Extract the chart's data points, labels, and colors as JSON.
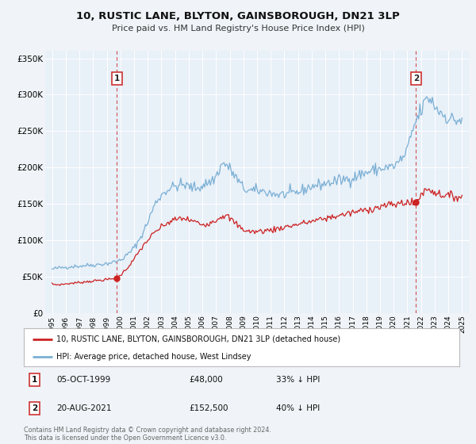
{
  "title": "10, RUSTIC LANE, BLYTON, GAINSBOROUGH, DN21 3LP",
  "subtitle": "Price paid vs. HM Land Registry's House Price Index (HPI)",
  "background_color": "#f0f4f8",
  "plot_bg_color": "#e8f0f8",
  "legend_label_red": "10, RUSTIC LANE, BLYTON, GAINSBOROUGH, DN21 3LP (detached house)",
  "legend_label_blue": "HPI: Average price, detached house, West Lindsey",
  "annotation1_date": "05-OCT-1999",
  "annotation1_price": "£48,000",
  "annotation1_hpi": "33% ↓ HPI",
  "annotation2_date": "20-AUG-2021",
  "annotation2_price": "£152,500",
  "annotation2_hpi": "40% ↓ HPI",
  "copyright": "Contains HM Land Registry data © Crown copyright and database right 2024.\nThis data is licensed under the Open Government Licence v3.0.",
  "sale1_x": 1999.75,
  "sale1_y": 48000,
  "sale2_x": 2021.63,
  "sale2_y": 152500,
  "vline1_x": 1999.75,
  "vline2_x": 2021.63,
  "ylim_max": 360000,
  "xlim_min": 1994.5,
  "xlim_max": 2025.5,
  "red_color": "#cc2222",
  "blue_color": "#7aafd4",
  "vline_color": "#cc3333",
  "yticks": [
    0,
    50000,
    100000,
    150000,
    200000,
    250000,
    300000,
    350000
  ],
  "ytick_labels": [
    "£0",
    "£50K",
    "£100K",
    "£150K",
    "£200K",
    "£250K",
    "£300K",
    "£350K"
  ],
  "xticks": [
    1995,
    1996,
    1997,
    1998,
    1999,
    2000,
    2001,
    2002,
    2003,
    2004,
    2005,
    2006,
    2007,
    2008,
    2009,
    2010,
    2011,
    2012,
    2013,
    2014,
    2015,
    2016,
    2017,
    2018,
    2019,
    2020,
    2021,
    2022,
    2023,
    2024,
    2025
  ]
}
